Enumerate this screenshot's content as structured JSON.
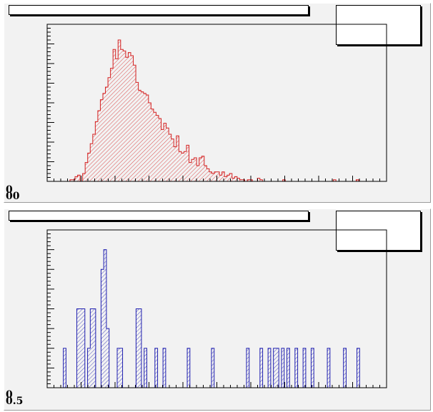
{
  "chart_data": [
    {
      "type": "bar",
      "title": "",
      "xlabel": "",
      "ylabel": "",
      "x_range": [
        0,
        100
      ],
      "ylim": [
        0,
        100
      ],
      "color": "#d42020",
      "fill": "hatched",
      "grid": false,
      "legend": "none",
      "stats_box": "top-right",
      "y_tick_labels": [
        "0",
        "00"
      ],
      "values": [
        0,
        0,
        0,
        0,
        0,
        0,
        0,
        0,
        0,
        1,
        1,
        3,
        4,
        0,
        5,
        12,
        18,
        24,
        30,
        38,
        45,
        52,
        56,
        60,
        66,
        72,
        84,
        78,
        90,
        84,
        83,
        79,
        82,
        80,
        74,
        63,
        58,
        57,
        56,
        55,
        50,
        46,
        44,
        42,
        40,
        33,
        37,
        34,
        30,
        27,
        22,
        29,
        19,
        18,
        19,
        23,
        12,
        14,
        15,
        10,
        15,
        16,
        10,
        8,
        6,
        5,
        6,
        6,
        4,
        6,
        3,
        4,
        5,
        2,
        3,
        2,
        1,
        1,
        0,
        1,
        1,
        0,
        0,
        2,
        1,
        0,
        0,
        0,
        0,
        0,
        0,
        0,
        0,
        1,
        0,
        0,
        0,
        0,
        0,
        0,
        0,
        0,
        0,
        0,
        0,
        0,
        0,
        0,
        0,
        0,
        0,
        0,
        0,
        1,
        0,
        0,
        0,
        0,
        0,
        0,
        0,
        0,
        1,
        0,
        0,
        0,
        0,
        0,
        0,
        0,
        0,
        0,
        0,
        0
      ]
    },
    {
      "type": "bar",
      "title": "",
      "xlabel": "",
      "ylabel": "",
      "x_range": [
        0,
        100
      ],
      "ylim": [
        0,
        8
      ],
      "color": "#2020b0",
      "fill": "hatched",
      "grid": false,
      "legend": "none",
      "stats_box": "top-right",
      "y_tick_labels": [
        "0",
        "0.5"
      ],
      "values": [
        0,
        0,
        0,
        0,
        0,
        0,
        2,
        0,
        0,
        0,
        0,
        4,
        4,
        4,
        0,
        2,
        4,
        4,
        0,
        0,
        6,
        7,
        3,
        0,
        0,
        0,
        2,
        2,
        0,
        0,
        0,
        0,
        0,
        4,
        4,
        0,
        2,
        0,
        0,
        0,
        2,
        0,
        0,
        2,
        0,
        0,
        0,
        0,
        0,
        0,
        0,
        0,
        2,
        0,
        0,
        0,
        0,
        0,
        0,
        0,
        0,
        2,
        0,
        0,
        0,
        0,
        0,
        0,
        0,
        0,
        0,
        0,
        0,
        0,
        2,
        0,
        0,
        0,
        0,
        2,
        0,
        0,
        2,
        0,
        2,
        2,
        0,
        2,
        0,
        2,
        0,
        0,
        2,
        0,
        0,
        2,
        0,
        0,
        2,
        0,
        0,
        0,
        0,
        0,
        2,
        0,
        0,
        0,
        0,
        0,
        2,
        0,
        0,
        0,
        0,
        2,
        0,
        0,
        0,
        0,
        0,
        0,
        0,
        0,
        0,
        0
      ]
    }
  ],
  "pads": {
    "top": {
      "title": "",
      "y_labels": [
        "0",
        "00"
      ]
    },
    "bottom": {
      "title": "",
      "y_labels": [
        "0",
        "0.5"
      ]
    }
  }
}
